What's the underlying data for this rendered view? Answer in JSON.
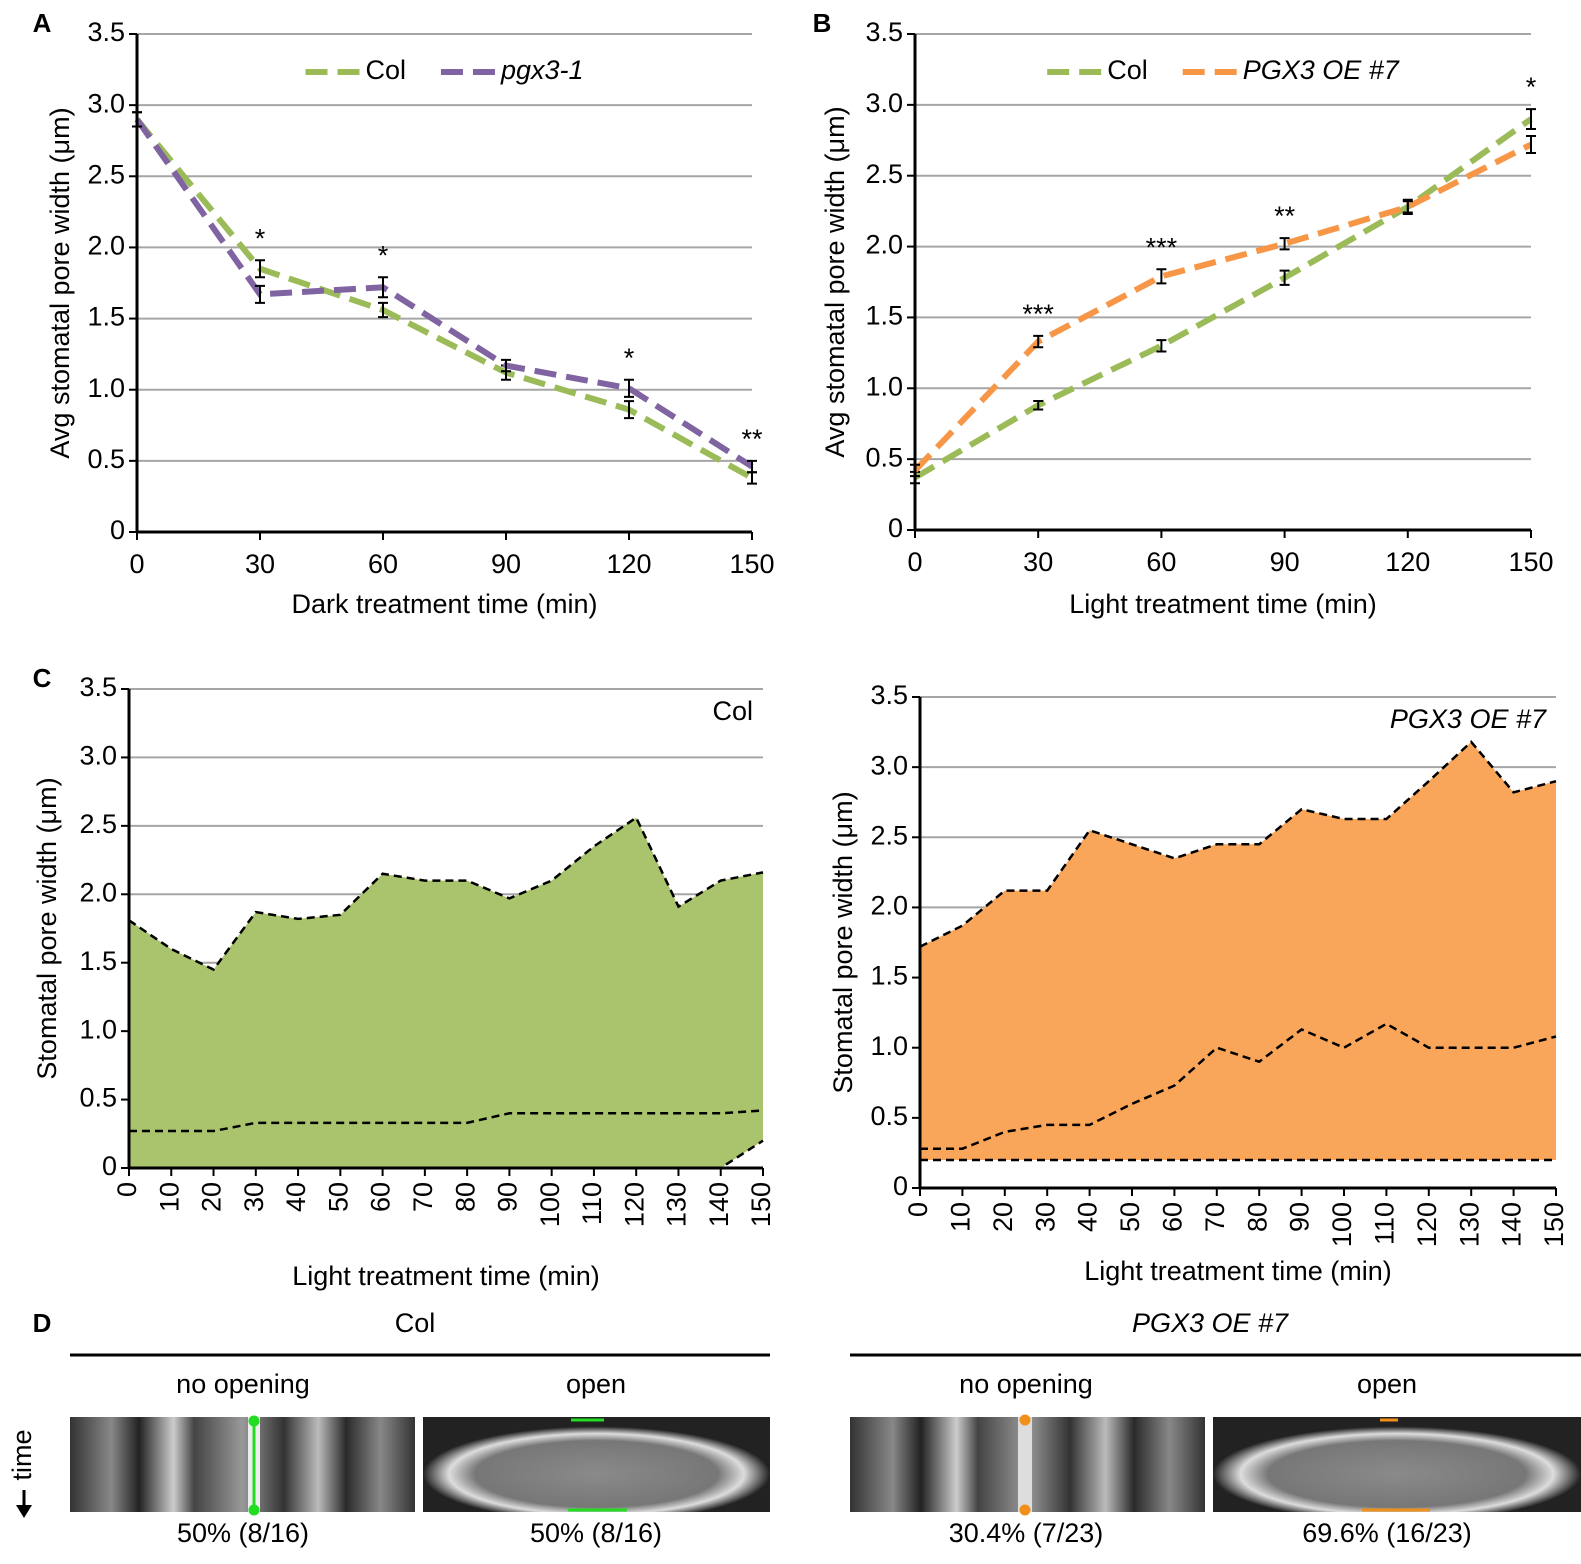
{
  "chart_data": [
    {
      "type": "line",
      "panel": "A",
      "x_label": "Dark treatment time (min)",
      "y_label": "Avg stomatal pore width (μm)",
      "x": [
        0,
        30,
        60,
        90,
        120,
        150
      ],
      "xlim": [
        0,
        150
      ],
      "xticks": [
        0,
        30,
        60,
        90,
        120,
        150
      ],
      "ylim": [
        0,
        3.5
      ],
      "yticks": [
        0,
        0.5,
        {
          "value": 1,
          "label": "1.0"
        },
        1.5,
        {
          "value": 2,
          "label": "2.0"
        },
        2.5,
        {
          "value": 3,
          "label": "3.0"
        },
        3.5
      ],
      "grid": true,
      "legend": "upper center",
      "series": [
        {
          "name": "Col",
          "color": "#9bbb59",
          "italic": false,
          "values": [
            2.9,
            1.85,
            1.56,
            1.12,
            0.86,
            0.38
          ],
          "errors": [
            0.05,
            0.06,
            0.05,
            0.05,
            0.06,
            0.04
          ]
        },
        {
          "name": "pgx3-1",
          "color": "#8064a2",
          "italic": true,
          "values": [
            2.9,
            1.67,
            1.72,
            1.17,
            1.01,
            0.46
          ],
          "errors": [
            0.05,
            0.06,
            0.07,
            0.04,
            0.06,
            0.04
          ]
        }
      ],
      "annotations": [
        {
          "x": 30,
          "text": "*"
        },
        {
          "x": 60,
          "text": "*"
        },
        {
          "x": 120,
          "text": "*"
        },
        {
          "x": 150,
          "text": "**"
        }
      ]
    },
    {
      "type": "line",
      "panel": "B",
      "x_label": "Light treatment time (min)",
      "y_label": "Avg stomatal pore width (μm)",
      "x": [
        0,
        30,
        60,
        90,
        120,
        150
      ],
      "xlim": [
        0,
        150
      ],
      "xticks": [
        0,
        30,
        60,
        90,
        120,
        150
      ],
      "ylim": [
        0,
        3.5
      ],
      "yticks": [
        0,
        0.5,
        {
          "value": 1,
          "label": "1.0"
        },
        1.5,
        {
          "value": 2,
          "label": "2.0"
        },
        2.5,
        {
          "value": 3,
          "label": "3.0"
        },
        3.5
      ],
      "grid": true,
      "legend": "upper center",
      "series": [
        {
          "name": "Col",
          "color": "#9bbb59",
          "italic": false,
          "values": [
            0.37,
            0.88,
            1.3,
            1.78,
            2.28,
            2.9
          ],
          "errors": [
            0.04,
            0.03,
            0.04,
            0.05,
            0.05,
            0.07
          ]
        },
        {
          "name": "PGX3 OE #7",
          "color": "#f79646",
          "italic": true,
          "values": [
            0.42,
            1.33,
            1.79,
            2.02,
            2.28,
            2.72
          ],
          "errors": [
            0.04,
            0.04,
            0.05,
            0.04,
            0.04,
            0.06
          ]
        }
      ],
      "annotations": [
        {
          "x": 30,
          "text": "***"
        },
        {
          "x": 60,
          "text": "***"
        },
        {
          "x": 90,
          "text": "**"
        },
        {
          "x": 150,
          "text": "*"
        }
      ]
    },
    {
      "type": "area",
      "panel": "C",
      "label": "Col",
      "label_italic": false,
      "color": "#a9c46c",
      "x_label": "Light treatment time (min)",
      "y_label": "Stomatal pore width (μm)",
      "x": [
        0,
        10,
        20,
        30,
        40,
        50,
        60,
        70,
        80,
        90,
        100,
        110,
        120,
        130,
        140,
        150
      ],
      "xlim": [
        0,
        150
      ],
      "xticks": [
        0,
        10,
        20,
        30,
        40,
        50,
        60,
        70,
        80,
        90,
        100,
        110,
        120,
        130,
        140,
        150
      ],
      "ylim": [
        0,
        3.5
      ],
      "yticks": [
        0,
        0.5,
        {
          "value": 1,
          "label": "1.0"
        },
        1.5,
        {
          "value": 2,
          "label": "2.0"
        },
        2.5,
        {
          "value": 3,
          "label": "3.0"
        },
        3.5
      ],
      "grid": true,
      "series": [
        {
          "values": [
            1.81,
            1.6,
            1.45,
            1.87,
            1.82,
            1.85,
            2.15,
            2.1,
            2.1,
            1.97,
            2.1,
            2.35,
            2.56,
            1.91,
            2.1,
            2.16
          ]
        },
        {
          "values": [
            0.27,
            0.27,
            0.27,
            0.33,
            0.33,
            0.33,
            0.33,
            0.33,
            0.33,
            0.4,
            0.4,
            0.4,
            0.4,
            0.4,
            0.4,
            0.42
          ]
        },
        {
          "values": [
            0,
            0,
            0,
            0,
            0,
            0,
            0,
            0,
            0,
            0,
            0,
            0,
            0,
            0,
            0,
            0.2
          ]
        }
      ]
    },
    {
      "type": "area",
      "label": "PGX3 OE #7",
      "label_italic": true,
      "color": "#f9a65a",
      "x_label": "Light treatment time (min)",
      "y_label": "Stomatal pore width (μm)",
      "x": [
        0,
        10,
        20,
        30,
        40,
        50,
        60,
        70,
        80,
        90,
        100,
        110,
        120,
        130,
        140,
        150
      ],
      "xlim": [
        0,
        150
      ],
      "xticks": [
        0,
        10,
        20,
        30,
        40,
        50,
        60,
        70,
        80,
        90,
        100,
        110,
        120,
        130,
        140,
        150
      ],
      "ylim": [
        0,
        3.5
      ],
      "yticks": [
        0,
        0.5,
        {
          "value": 1,
          "label": "1.0"
        },
        1.5,
        {
          "value": 2,
          "label": "2.0"
        },
        2.5,
        {
          "value": 3,
          "label": "3.0"
        },
        3.5
      ],
      "grid": true,
      "series": [
        {
          "values": [
            1.72,
            1.87,
            2.12,
            2.12,
            2.55,
            2.45,
            2.35,
            2.45,
            2.45,
            2.7,
            2.63,
            2.63,
            2.9,
            3.18,
            2.82,
            2.9
          ]
        },
        {
          "values": [
            0.28,
            0.28,
            0.4,
            0.45,
            0.45,
            0.6,
            0.73,
            1.0,
            0.9,
            1.13,
            1.0,
            1.17,
            1.0,
            1.0,
            1.0,
            1.08
          ]
        },
        {
          "values": [
            0.2,
            0.2,
            0.2,
            0.2,
            0.2,
            0.2,
            0.2,
            0.2,
            0.2,
            0.2,
            0.2,
            0.2,
            0.2,
            0.2,
            0.2,
            0.2
          ]
        }
      ]
    }
  ],
  "panel_d": {
    "panel": "D",
    "time_label": "time",
    "groups": [
      {
        "title": "Col",
        "columns": [
          {
            "heading": "no opening",
            "caption": "50% (8/16)"
          },
          {
            "heading": "open",
            "caption": "50% (8/16)"
          }
        ]
      },
      {
        "title": "PGX3 OE #7",
        "columns": [
          {
            "heading": "no opening",
            "caption": "30.4% (7/23)"
          },
          {
            "heading": "open",
            "caption": "69.6% (16/23)"
          }
        ]
      }
    ]
  }
}
